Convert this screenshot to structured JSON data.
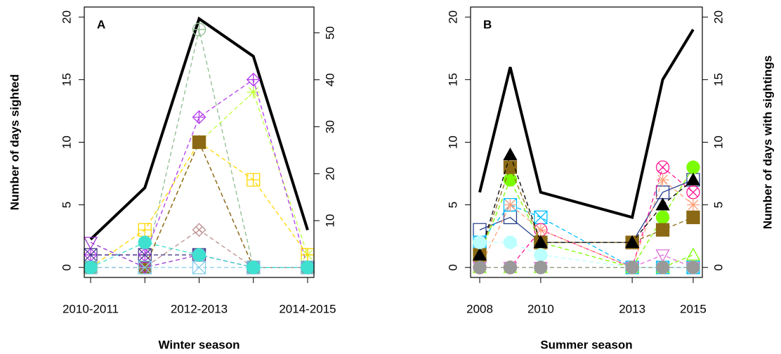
{
  "chart_data": [
    {
      "type": "line",
      "panel_label": "A",
      "xlabel": "Winter season",
      "ylabel": "Number of days sighted",
      "categories": [
        "2010-2011",
        null,
        "2012-2013",
        null,
        "2014-2015"
      ],
      "ylim": [
        -0.8,
        20.8
      ],
      "yticks": [
        0,
        5,
        10,
        15,
        20
      ],
      "y2lim": [
        -2.1,
        55.5
      ],
      "y2ticks": [
        10,
        20,
        30,
        40,
        50
      ],
      "series": [
        {
          "color": "#000000",
          "linestyle": "solid",
          "axis": "y2",
          "values": [
            6,
            17,
            53,
            45,
            8
          ]
        },
        {
          "color": "#8fbc8f",
          "linestyle": "dashed",
          "marker": "circle-plus",
          "values": [
            0,
            0,
            19,
            0,
            0
          ]
        },
        {
          "color": "#c0ff3e",
          "linestyle": "dashed",
          "marker": "star",
          "values": [
            0,
            0,
            10,
            14,
            1
          ]
        },
        {
          "color": "#b23aee",
          "linestyle": "dashed",
          "marker": "diamond-plus",
          "values": [
            1,
            1,
            12,
            15,
            0
          ]
        },
        {
          "color": "#ffd700",
          "linestyle": "dashed",
          "marker": "square-plus",
          "values": [
            0,
            3,
            10,
            7,
            1
          ]
        },
        {
          "color": "#a0522d",
          "linestyle": "dashed",
          "marker": "triangle",
          "values": [
            0,
            0,
            10,
            0,
            0
          ]
        },
        {
          "color": "#8b6914",
          "linestyle": "dashed",
          "marker": "square-filled",
          "values": [
            0,
            0,
            10,
            0,
            0
          ]
        },
        {
          "color": "#bc8f8f",
          "linestyle": "dashed",
          "marker": "diamond-x",
          "values": [
            0,
            0,
            3,
            0,
            0
          ]
        },
        {
          "color": "#9932cc",
          "linestyle": "dashed",
          "marker": "triangle-down",
          "values": [
            2,
            0,
            1,
            0,
            0
          ]
        },
        {
          "color": "#483d8b",
          "linestyle": "dashed",
          "marker": "square-x",
          "values": [
            1,
            1,
            1,
            0,
            0
          ]
        },
        {
          "color": "#87ceeb",
          "linestyle": "dashed",
          "marker": "square-x",
          "values": [
            0,
            0,
            0,
            0,
            0
          ]
        },
        {
          "color": "#40e0d0",
          "linestyle": "dashed",
          "marker": "circle-filled",
          "values": [
            0,
            2,
            1,
            0,
            0
          ]
        }
      ]
    },
    {
      "type": "line",
      "panel_label": "B",
      "xlabel": "Summer season",
      "y2label": "Number of days with sightings",
      "x": [
        2008,
        2009,
        2010,
        2013,
        2014,
        2015
      ],
      "xlim": [
        2007.7,
        2015.3
      ],
      "xticks": [
        2008,
        2010,
        2013,
        2015
      ],
      "ylim": [
        -0.8,
        20.8
      ],
      "yticks": [
        0,
        5,
        10,
        15,
        20
      ],
      "y2lim": [
        -0.8,
        20.8
      ],
      "y2ticks": [
        0,
        5,
        10,
        15,
        20
      ],
      "series": [
        {
          "color": "#000000",
          "linestyle": "solid",
          "axis": "y2",
          "values": [
            6,
            16,
            6,
            4,
            15,
            19
          ]
        },
        {
          "color": "#27408b",
          "linestyle": "solid",
          "marker": "square",
          "values": [
            3,
            4,
            2,
            2,
            6,
            7
          ]
        },
        {
          "color": "#00bfff",
          "linestyle": "dashed",
          "marker": "square-x",
          "values": [
            2,
            5,
            4,
            0,
            0,
            0
          ]
        },
        {
          "color": "#ff1493",
          "linestyle": "dashed",
          "marker": "circle-x",
          "values": [
            0,
            0,
            3,
            0,
            8,
            6
          ]
        },
        {
          "color": "#ffa07a",
          "linestyle": "dashed",
          "marker": "star",
          "values": [
            0,
            5,
            3,
            0,
            7,
            5
          ]
        },
        {
          "color": "#7cfc00",
          "linestyle": "dashed",
          "marker": "circle-filled",
          "values": [
            1,
            7,
            2,
            0,
            4,
            8
          ]
        },
        {
          "color": "#8b6914",
          "linestyle": "dashed",
          "marker": "square-filled",
          "values": [
            1,
            8,
            2,
            2,
            3,
            4
          ]
        },
        {
          "color": "#000000",
          "linestyle": "dashed",
          "marker": "triangle-filled",
          "values": [
            1,
            9,
            2,
            2,
            5,
            7
          ]
        },
        {
          "color": "#da70d6",
          "linestyle": "dashed",
          "marker": "triangle-down",
          "values": [
            0,
            0,
            0,
            0,
            1,
            0
          ]
        },
        {
          "color": "#7cfc00",
          "linestyle": "dashed",
          "marker": "triangle",
          "values": [
            0,
            0,
            0,
            0,
            0,
            1
          ]
        },
        {
          "color": "#bbffff",
          "linestyle": "dashed",
          "marker": "circle-filled",
          "values": [
            2,
            2,
            1,
            0,
            0,
            0
          ]
        },
        {
          "color": "#999999",
          "linestyle": "dashed",
          "marker": "circle-filled",
          "values": [
            0,
            0,
            0,
            0,
            0,
            0
          ]
        }
      ]
    }
  ]
}
